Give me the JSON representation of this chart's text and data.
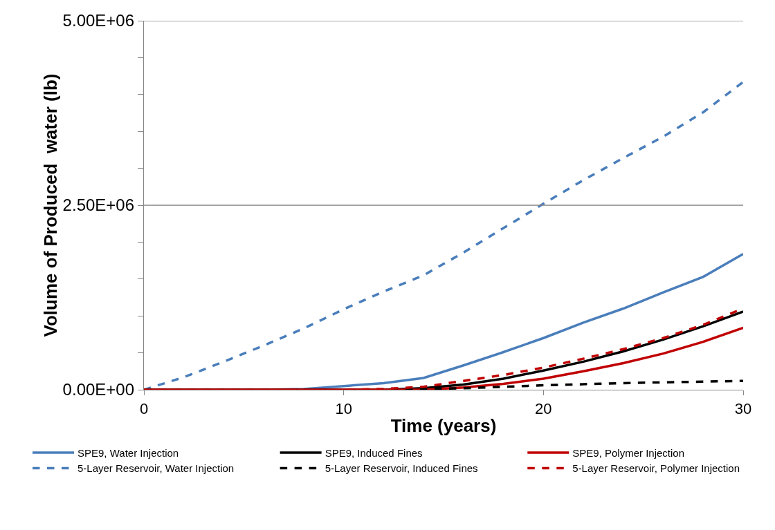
{
  "chart_data": {
    "type": "line",
    "xlabel": "Time (years)",
    "ylabel": "Volume of Produced  water (lb)",
    "xlim": [
      0,
      30
    ],
    "xticks": [
      0,
      10,
      20,
      30
    ],
    "ylim": [
      0,
      5000000
    ],
    "yticks": [
      {
        "value": 0,
        "label": "0.00E+00"
      },
      {
        "value": 500000,
        "label": null
      },
      {
        "value": 1000000,
        "label": null
      },
      {
        "value": 1500000,
        "label": null
      },
      {
        "value": 2000000,
        "label": null
      },
      {
        "value": 2500000,
        "label": "2.50E+06"
      },
      {
        "value": 3000000,
        "label": null
      },
      {
        "value": 3500000,
        "label": null
      },
      {
        "value": 4000000,
        "label": null
      },
      {
        "value": 4500000,
        "label": null
      },
      {
        "value": 5000000,
        "label": "5.00E+06"
      }
    ],
    "grid": "y",
    "legend": "bottom",
    "marker": "none",
    "x": [
      0,
      2,
      4,
      6,
      8,
      10,
      12,
      14,
      16,
      18,
      20,
      22,
      24,
      26,
      28,
      30
    ],
    "series": [
      {
        "name": "SPE9, Water Injection",
        "color": "#4a7ebb",
        "line_style": "solid",
        "values": [
          0,
          0,
          0,
          0,
          10000,
          50000,
          90000,
          160000,
          330000,
          510000,
          700000,
          910000,
          1100000,
          1320000,
          1530000,
          1840000
        ]
      },
      {
        "name": "SPE9, Induced Fines",
        "color": "#000000",
        "line_style": "solid",
        "values": [
          0,
          0,
          0,
          0,
          0,
          0,
          0,
          20000,
          70000,
          150000,
          260000,
          380000,
          520000,
          680000,
          860000,
          1060000
        ]
      },
      {
        "name": "SPE9, Polymer Injection",
        "color": "#c00000",
        "line_style": "solid",
        "values": [
          0,
          0,
          0,
          0,
          0,
          0,
          0,
          0,
          30000,
          80000,
          150000,
          250000,
          360000,
          490000,
          650000,
          840000
        ]
      },
      {
        "name": "5-Layer Reservoir, Water Injection",
        "color": "#4a7ebb",
        "line_style": "dashed",
        "values": [
          0,
          170000,
          380000,
          600000,
          830000,
          1090000,
          1330000,
          1550000,
          1860000,
          2190000,
          2520000,
          2840000,
          3140000,
          3430000,
          3760000,
          4170000
        ]
      },
      {
        "name": "5-Layer Reservoir, Induced Fines",
        "color": "#000000",
        "line_style": "dashed",
        "values": [
          0,
          0,
          0,
          0,
          0,
          0,
          0,
          10000,
          20000,
          40000,
          60000,
          75000,
          90000,
          100000,
          110000,
          120000
        ]
      },
      {
        "name": "5-Layer Reservoir, Polymer Injection",
        "color": "#c00000",
        "line_style": "dashed",
        "values": [
          0,
          0,
          0,
          0,
          0,
          0,
          10000,
          40000,
          120000,
          200000,
          300000,
          420000,
          550000,
          700000,
          880000,
          1100000
        ]
      }
    ]
  }
}
